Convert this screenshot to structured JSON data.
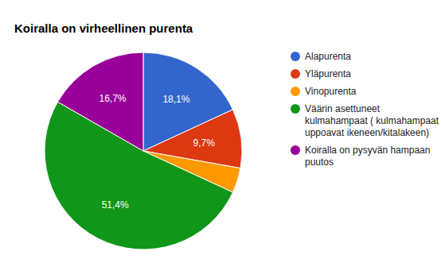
{
  "chart_data": {
    "type": "pie",
    "title": "Koiralla on virheellinen purenta",
    "categories": [
      "Alapurenta",
      "Yläpurenta",
      "Vinopurenta",
      "Väärin asettuneet kulmahampaat ( kulmahampaat uppoavat ikeneen/kitalakeen)",
      "Koiralla on pysyvän hampaan puutos"
    ],
    "values": [
      18.1,
      9.7,
      4.1,
      51.4,
      16.7
    ],
    "value_labels": [
      "18,1%",
      "9,7%",
      null,
      "51,4%",
      "16,7%"
    ],
    "colors": [
      "#3366cc",
      "#dc3912",
      "#ff9900",
      "#109618",
      "#990099"
    ],
    "data_labels": true,
    "legend": "right"
  }
}
